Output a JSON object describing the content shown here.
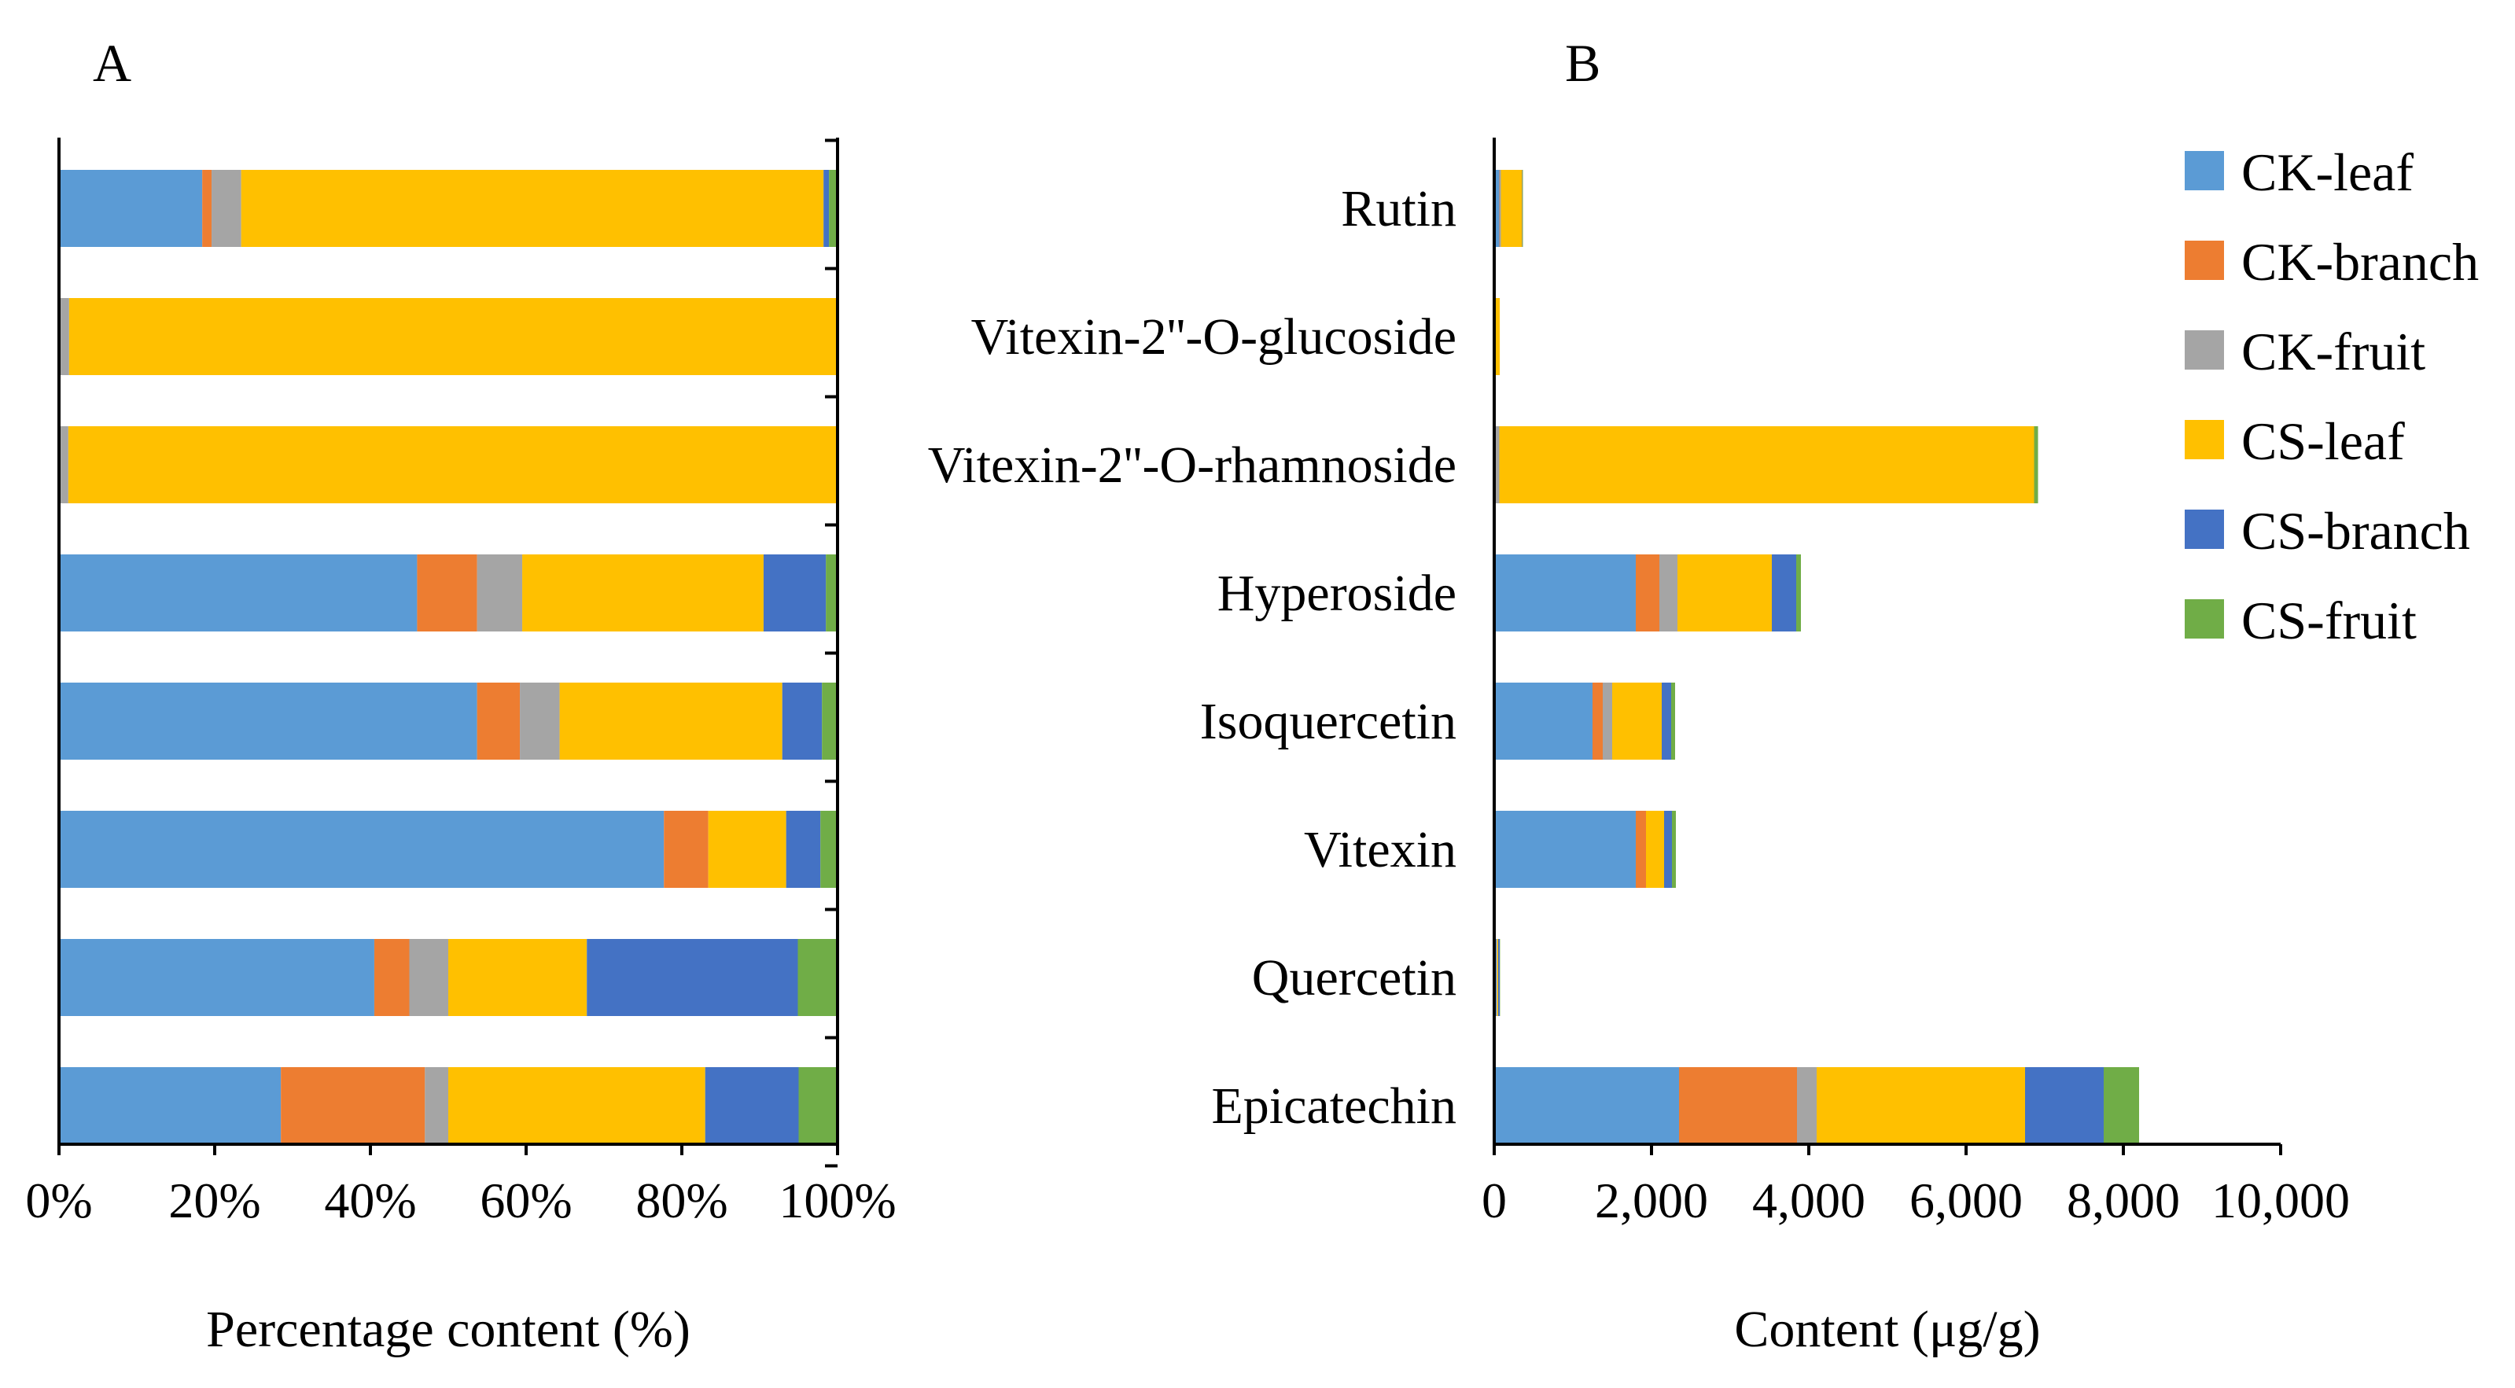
{
  "figure": {
    "panel_a_label": "A",
    "panel_b_label": "B"
  },
  "series_colors": {
    "CK-leaf": "#5B9BD5",
    "CK-branch": "#ED7D31",
    "CK-fruit": "#A5A5A5",
    "CS-leaf": "#FFC000",
    "CS-branch": "#4472C4",
    "CS-fruit": "#70AD47"
  },
  "chart_data": [
    {
      "id": "A",
      "type": "bar",
      "orientation": "horizontal",
      "stacked": "percent",
      "title": "A",
      "xlabel": "Percentage content (%)",
      "ylabel": "",
      "xlim": [
        0,
        100
      ],
      "xticks": [
        "0%",
        "20%",
        "40%",
        "60%",
        "80%",
        "100%"
      ],
      "categories": [
        "Rutin",
        "Vitexin-2''-O-glucoside",
        "Vitexin-2''-O-rhamnoside",
        "Hyperoside",
        "Isoquercetin",
        "Vitexin",
        "Quercetin",
        "Epicatechin"
      ],
      "series": [
        {
          "name": "CK-leaf",
          "values": [
            18.4,
            0,
            0,
            46,
            53.7,
            77.7,
            40.5,
            28.5
          ]
        },
        {
          "name": "CK-branch",
          "values": [
            1.2,
            0,
            0,
            7.7,
            5.5,
            5.7,
            4.5,
            18.5
          ]
        },
        {
          "name": "CK-fruit",
          "values": [
            3.8,
            1.3,
            1.2,
            5.8,
            5.1,
            0,
            5,
            3
          ]
        },
        {
          "name": "CS-leaf",
          "values": [
            74.8,
            98.5,
            98.8,
            31,
            28.6,
            10,
            17.8,
            33
          ]
        },
        {
          "name": "CS-branch",
          "values": [
            0.7,
            0,
            0,
            8,
            5.1,
            4.4,
            27.1,
            12
          ]
        },
        {
          "name": "CS-fruit",
          "values": [
            1.1,
            0.2,
            0,
            1.5,
            2,
            2.2,
            5.1,
            5
          ]
        }
      ]
    },
    {
      "id": "B",
      "type": "bar",
      "orientation": "horizontal",
      "stacked": "absolute",
      "title": "B",
      "xlabel": "Content (μg/g)",
      "ylabel": "",
      "xlim": [
        0,
        10000
      ],
      "xticks": [
        "0",
        "2,000",
        "4,000",
        "6,000",
        "8,000",
        "10,000"
      ],
      "categories": [
        "Rutin",
        "Vitexin-2''-O-glucoside",
        "Vitexin-2''-O-rhamnoside",
        "Hyperoside",
        "Isoquercetin",
        "Vitexin",
        "Quercetin",
        "Epicatechin"
      ],
      "series": [
        {
          "name": "CK-leaf",
          "values": [
            65,
            0,
            0,
            1800,
            1250,
            1800,
            30,
            2350
          ]
        },
        {
          "name": "CK-branch",
          "values": [
            5,
            0,
            0,
            300,
            130,
            130,
            3,
            1500
          ]
        },
        {
          "name": "CK-fruit",
          "values": [
            15,
            1,
            65,
            230,
            120,
            0,
            4,
            250
          ]
        },
        {
          "name": "CS-leaf",
          "values": [
            270,
            70,
            6800,
            1200,
            630,
            230,
            13,
            2650
          ]
        },
        {
          "name": "CS-branch",
          "values": [
            5,
            0,
            0,
            310,
            120,
            100,
            20,
            1000
          ]
        },
        {
          "name": "CS-fruit",
          "values": [
            5,
            0,
            50,
            60,
            50,
            50,
            4,
            450
          ]
        }
      ],
      "legend": {
        "position": "top-right",
        "entries": [
          "CK-leaf",
          "CK-branch",
          "CK-fruit",
          "CS-leaf",
          "CS-branch",
          "CS-fruit"
        ]
      }
    }
  ]
}
